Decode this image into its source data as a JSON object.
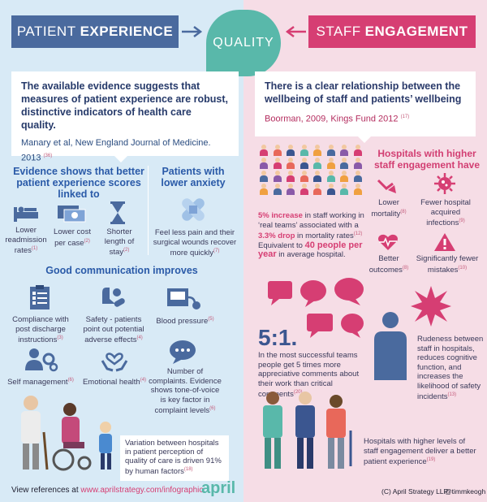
{
  "header": {
    "left_light": "PATIENT",
    "left_bold": "EXPERIENCE",
    "center": "QUALITY",
    "right_light": "STAFF",
    "right_bold": "ENGAGEMENT"
  },
  "left_quote": {
    "text": "The available evidence suggests that measures of patient experience are robust, distinctive indicators of health care quality.",
    "source": "Manary et al, New England Journal of Medicine. 2013",
    "ref": "(36)"
  },
  "right_quote": {
    "text": "There is a clear relationship between the wellbeing of staff and patients’ wellbeing",
    "source": "Boorman, 2009, Kings Fund 2012",
    "ref": "(17)"
  },
  "evidence": {
    "heading": "Evidence shows that better patient experience scores linked to",
    "items": [
      {
        "label": "Lower readmission rates",
        "ref": "(1)",
        "icon": "hospital-bed-icon"
      },
      {
        "label": "Lower cost per case",
        "ref": "(2)",
        "icon": "cash-icon"
      },
      {
        "label": "Shorter length of stay",
        "ref": "(2)",
        "icon": "hourglass-icon"
      }
    ]
  },
  "anxiety": {
    "heading": "Patients with lower anxiety",
    "text": "Feel less pain and their surgical wounds recover more quickly",
    "ref": "(7)",
    "icon": "bandage-icon"
  },
  "communication": {
    "heading": "Good communication improves",
    "items": [
      {
        "label": "Compliance with post discharge instructions",
        "ref": "(3)",
        "icon": "clipboard-icon"
      },
      {
        "label": "Safety - patients point out potential adverse effects",
        "ref": "(4)",
        "icon": "pills-icon"
      },
      {
        "label": "Blood pressure",
        "ref": "(5)",
        "icon": "blood-pressure-icon"
      },
      {
        "label": "Self management",
        "ref": "(6)",
        "icon": "self-management-icon"
      },
      {
        "label": "Emotional health",
        "ref": "(4)",
        "icon": "heart-hands-icon"
      },
      {
        "label": "Number of complaints. Evidence shows tone-of-voice is key factor in complaint levels",
        "ref": "(6)",
        "icon": "speech-icon"
      }
    ]
  },
  "variation": {
    "text": "Variation between hospitals in patient perception of quality of care is driven 91% by human factors",
    "ref": "(18)"
  },
  "footer": {
    "refs_label": "View references at",
    "refs_link": "www.aprilstrategy.com/infographic",
    "brand": "april",
    "copyright": "(C) April Strategy LLP",
    "handle": "@timmkeogh"
  },
  "real_teams": {
    "pct": "5% increase",
    "text_a": "in staff working in ‘real teams’ associated with a",
    "drop": "3.3% drop",
    "text_b": "in mortality rates",
    "ref": "(12)",
    "text_c": "Equivalent to",
    "people": "40 people per year",
    "text_d": "in average hospital."
  },
  "higher_engagement": {
    "heading": "Hospitals with higher staff engagement have",
    "items": [
      {
        "label": "Lower mortality",
        "ref": "(8)",
        "icon": "down-arrow-icon"
      },
      {
        "label": "Fewer hospital acquired infections",
        "ref": "(9)",
        "icon": "germ-icon"
      },
      {
        "label": "Better outcomes",
        "ref": "(8)",
        "icon": "heartbeat-icon"
      },
      {
        "label": "Significantly fewer mistakes",
        "ref": "(10)",
        "icon": "warning-icon"
      }
    ]
  },
  "ratio": {
    "value": "5:1.",
    "text": "In the most successful teams people get 5 times more appreciative comments about their work than critical comments",
    "ref": "(20)"
  },
  "rudeness": {
    "text": "Rudeness between staff in hospitals, reduces cognitive function, and increases the likelihood of safety incidents",
    "ref": "(13)"
  },
  "staff_patient": {
    "text": "Hospitals with higher levels of staff engagement deliver a better patient experience",
    "ref": "(19)"
  },
  "colors": {
    "blue": "#4a6a9e",
    "pink": "#d63e73",
    "teal": "#59b8aa",
    "light_blue": "#d8eaf6",
    "light_pink": "#f6dde6"
  }
}
